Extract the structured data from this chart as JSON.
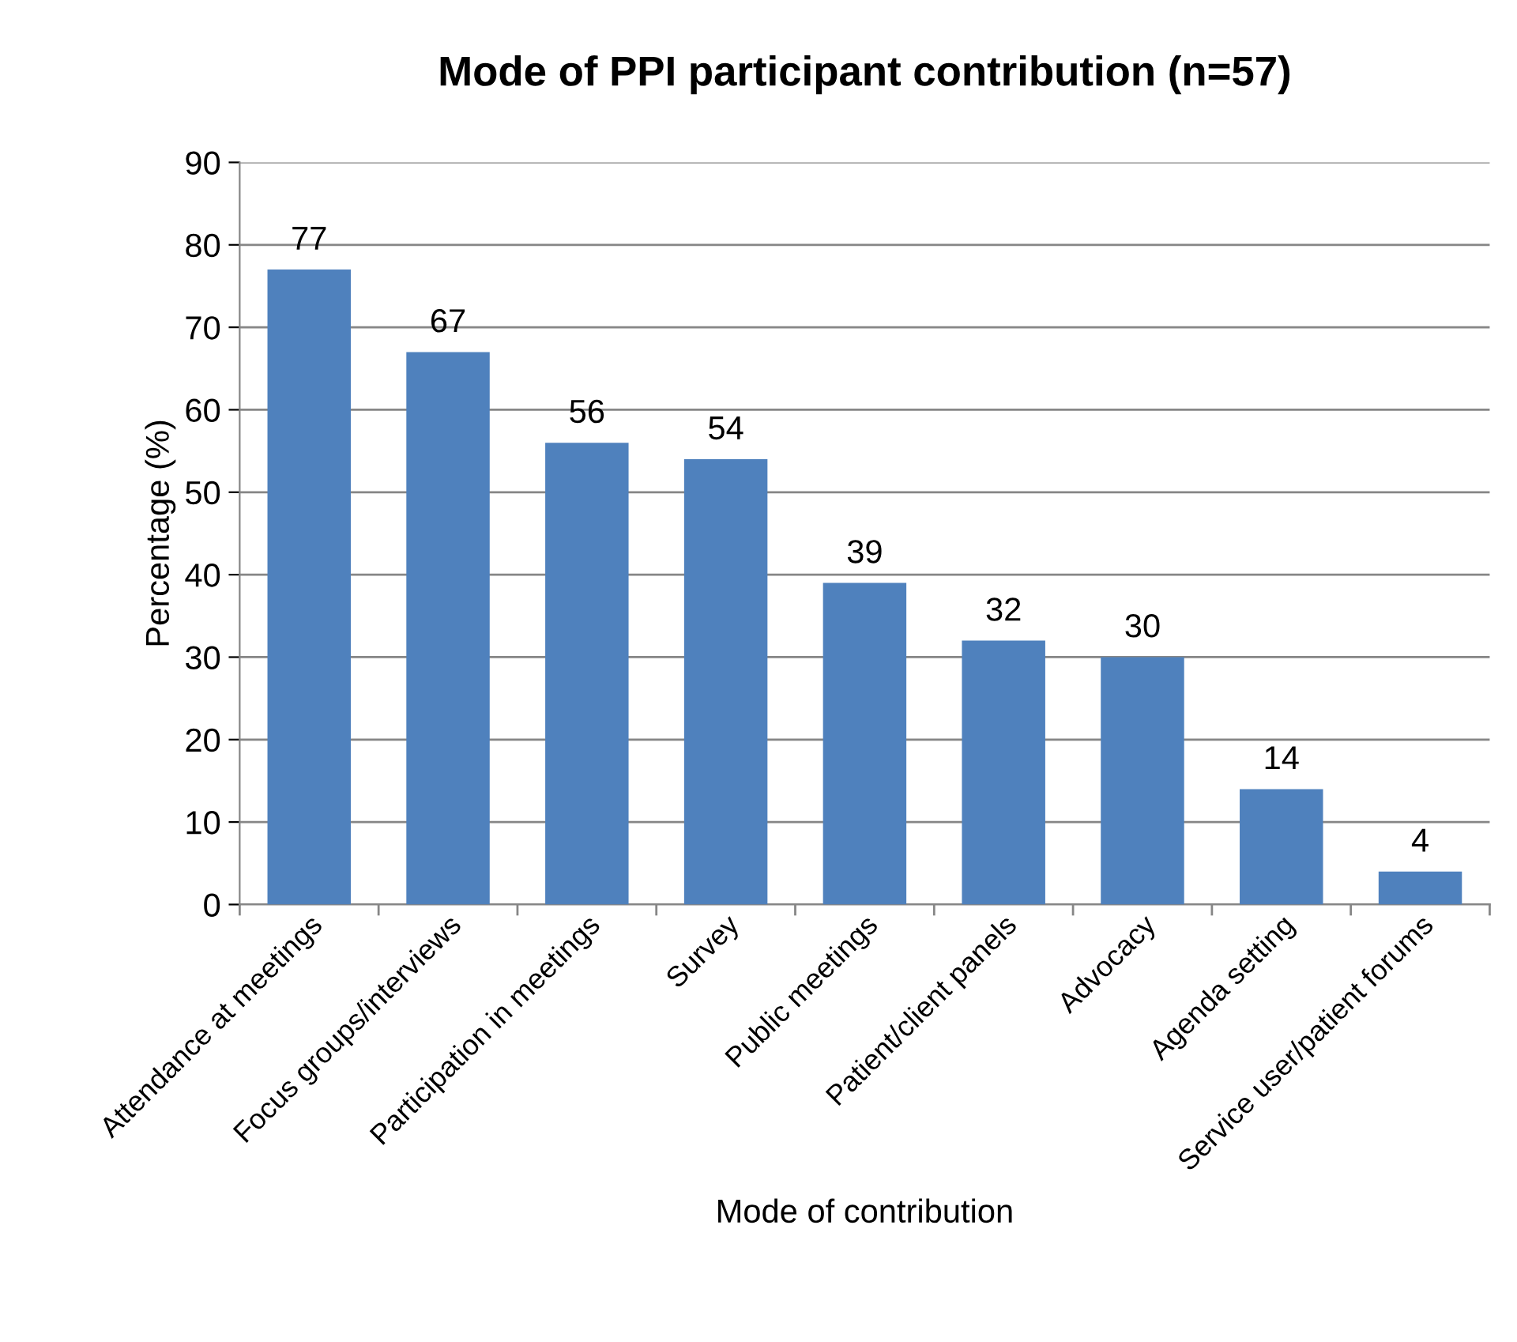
{
  "chart_data": {
    "type": "bar",
    "title": "Mode of PPI participant contribution (n=57)",
    "xlabel": "Mode of contribution",
    "ylabel": "Percentage (%)",
    "categories": [
      "Attendance at meetings",
      "Focus groups/interviews",
      "Participation in meetings",
      "Survey",
      "Public meetings",
      "Patient/client panels",
      "Advocacy",
      "Agenda setting",
      "Service user/patient forums"
    ],
    "values": [
      77,
      67,
      56,
      54,
      39,
      32,
      30,
      14,
      4
    ],
    "color": "#4f81bd",
    "ylim": [
      0,
      90
    ],
    "yticks": [
      0,
      10,
      20,
      30,
      40,
      50,
      60,
      70,
      80,
      90
    ],
    "grid": "y",
    "data_labels": true
  }
}
